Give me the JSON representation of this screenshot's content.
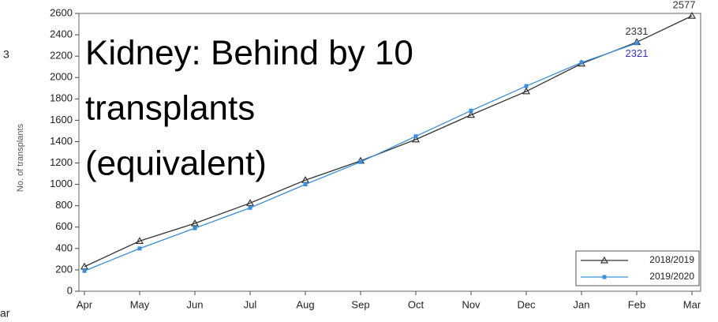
{
  "chart_data": {
    "type": "line",
    "y_label": "No. of transplants",
    "annotation": [
      "Kidney: Behind by 10",
      "transplants",
      "(equivalent)"
    ],
    "fragments": [
      "3",
      "ar"
    ],
    "categories": [
      "Apr",
      "May",
      "Jun",
      "Jul",
      "Aug",
      "Sep",
      "Oct",
      "Nov",
      "Dec",
      "Jan",
      "Feb",
      "Mar"
    ],
    "series": [
      {
        "name": "2018/2019",
        "color": "#333333",
        "marker": "triangle",
        "label_color": "#333333",
        "values": [
          230,
          470,
          635,
          825,
          1040,
          1220,
          1420,
          1650,
          1870,
          2130,
          2331,
          2577
        ],
        "value_labels": [
          null,
          null,
          null,
          null,
          null,
          null,
          null,
          null,
          null,
          null,
          "2331",
          "2577"
        ]
      },
      {
        "name": "2019/2020",
        "color": "#3a8fd9",
        "marker": "square",
        "label_color": "#3333cc",
        "values": [
          190,
          400,
          590,
          780,
          1000,
          1210,
          1450,
          1690,
          1920,
          2140,
          2321,
          null
        ],
        "value_labels": [
          null,
          null,
          null,
          null,
          null,
          null,
          null,
          null,
          null,
          null,
          "2321",
          null
        ]
      }
    ],
    "ylim": [
      0,
      2600
    ],
    "yticks": [
      0,
      200,
      400,
      600,
      800,
      1000,
      1200,
      1400,
      1600,
      1800,
      2000,
      2200,
      2400,
      2600
    ],
    "legend": "lower right"
  }
}
